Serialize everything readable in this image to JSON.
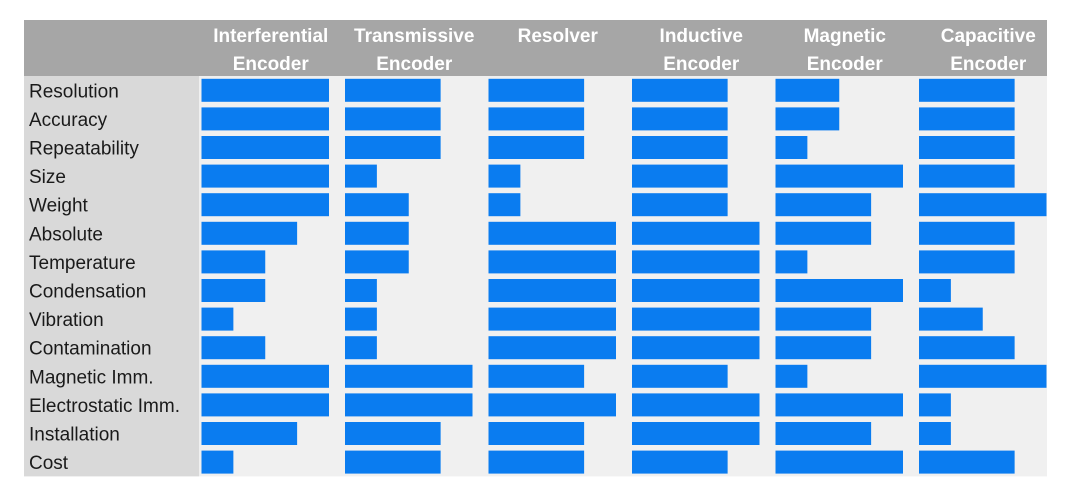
{
  "chart_data": {
    "type": "bar",
    "title": "",
    "xlabel": "",
    "ylabel": "",
    "xlim": [
      0,
      4
    ],
    "categories": [
      "Resolution",
      "Accuracy",
      "Repeatability",
      "Size",
      "Weight",
      "Absolute",
      "Temperature",
      "Condensation",
      "Vibration",
      "Contamination",
      "Magnetic Imm.",
      "Electrostatic Imm.",
      "Installation",
      "Cost"
    ],
    "series": [
      {
        "name": [
          "Interferential",
          "Encoder"
        ],
        "values": [
          4,
          4,
          4,
          4,
          4,
          3,
          2,
          2,
          1,
          2,
          4,
          4,
          3,
          1
        ]
      },
      {
        "name": [
          "Transmissive",
          "Encoder"
        ],
        "values": [
          3,
          3,
          3,
          1,
          2,
          2,
          2,
          1,
          1,
          1,
          4,
          4,
          3,
          3
        ]
      },
      {
        "name": [
          "Resolver"
        ],
        "values": [
          3,
          3,
          3,
          1,
          1,
          4,
          4,
          4,
          4,
          4,
          3,
          4,
          3,
          3
        ]
      },
      {
        "name": [
          "Inductive",
          "Encoder"
        ],
        "values": [
          3,
          3,
          3,
          3,
          3,
          4,
          4,
          4,
          4,
          4,
          3,
          4,
          4,
          3
        ]
      },
      {
        "name": [
          "Magnetic",
          "Encoder"
        ],
        "values": [
          2,
          2,
          1,
          4,
          3,
          3,
          1,
          4,
          3,
          3,
          1,
          4,
          3,
          4
        ]
      },
      {
        "name": [
          "Capacitive",
          "Encoder"
        ],
        "values": [
          3,
          3,
          3,
          3,
          4,
          3,
          3,
          1,
          2,
          3,
          4,
          1,
          1,
          3
        ]
      }
    ],
    "colors": {
      "bar": "#0a7cf0",
      "header_bg": "#a6a6a6",
      "label_bg": "#d9d9d9",
      "panel_bg": "#f0f0f0"
    },
    "grid": false,
    "legend": "none"
  }
}
